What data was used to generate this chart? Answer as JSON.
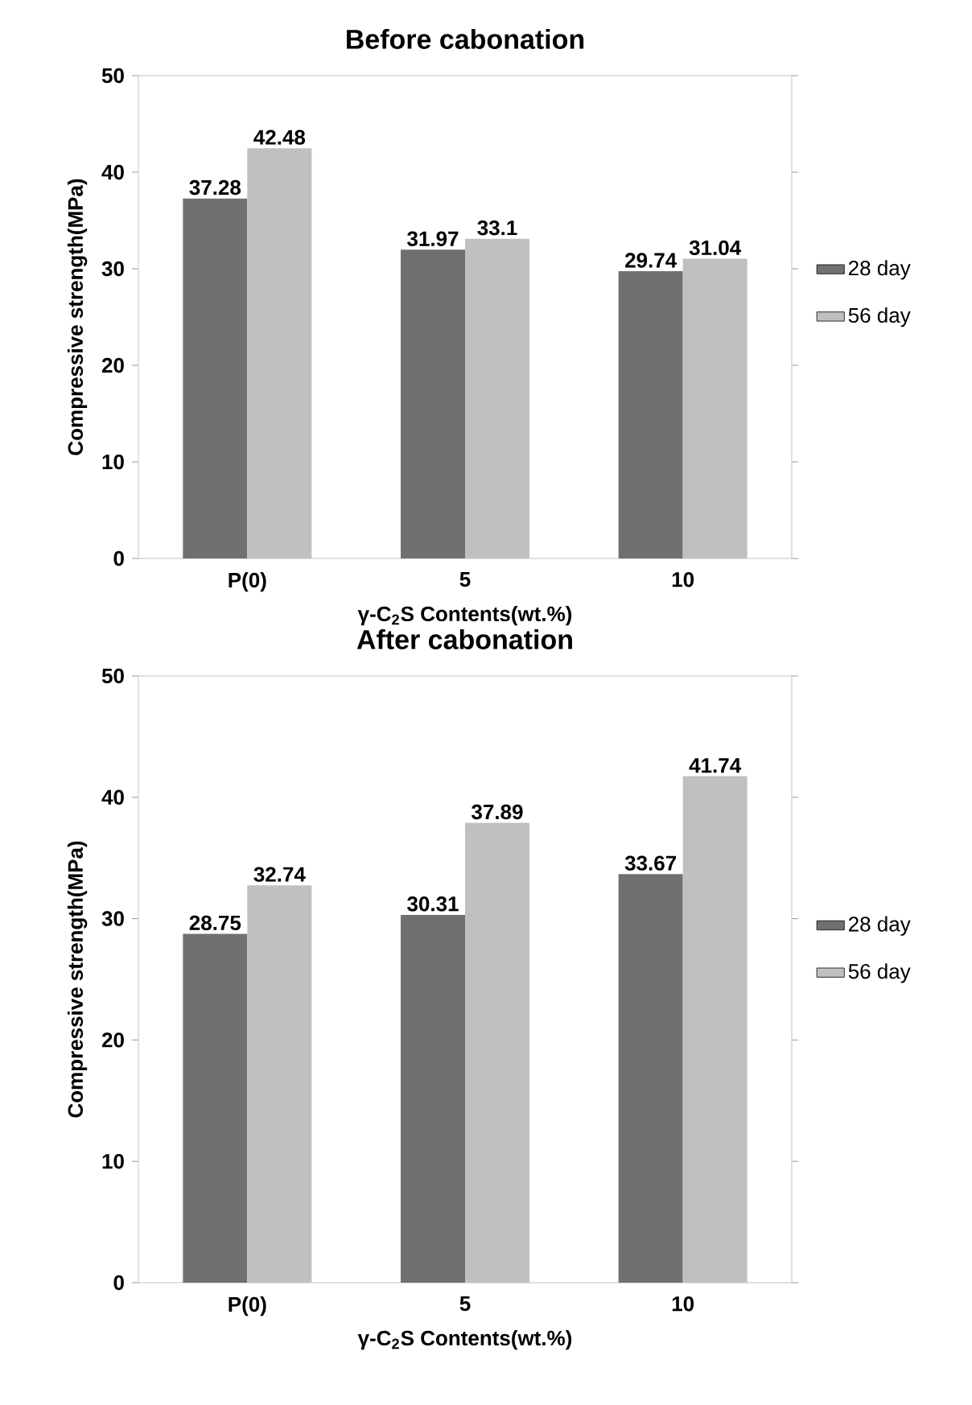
{
  "chart_data": [
    {
      "type": "bar",
      "title": "Before cabonation",
      "xlabel": "γ-C$_{2}$S Contents(wt.%)",
      "ylabel": "Compressive strength(MPa)",
      "categories": [
        "P(0)",
        "5",
        "10"
      ],
      "series": [
        {
          "name": "28 day",
          "color": "#707070",
          "values": [
            37.28,
            31.97,
            29.74
          ]
        },
        {
          "name": "56 day",
          "color": "#c0c0c0",
          "values": [
            42.48,
            33.1,
            31.04
          ]
        }
      ],
      "ylim": [
        0,
        50
      ],
      "yticks": [
        0,
        10,
        20,
        30,
        40,
        50
      ],
      "data_labels": true,
      "legend": "right"
    },
    {
      "type": "bar",
      "title": "After cabonation",
      "xlabel": "γ-C$_{2}$S Contents(wt.%)",
      "ylabel": "Compressive strength(MPa)",
      "categories": [
        "P(0)",
        "5",
        "10"
      ],
      "series": [
        {
          "name": "28 day",
          "color": "#707070",
          "values": [
            28.75,
            30.31,
            33.67
          ]
        },
        {
          "name": "56 day",
          "color": "#c0c0c0",
          "values": [
            32.74,
            37.89,
            41.74
          ]
        }
      ],
      "ylim": [
        0,
        50
      ],
      "yticks": [
        0,
        10,
        20,
        30,
        40,
        50
      ],
      "data_labels": true,
      "legend": "right"
    }
  ]
}
